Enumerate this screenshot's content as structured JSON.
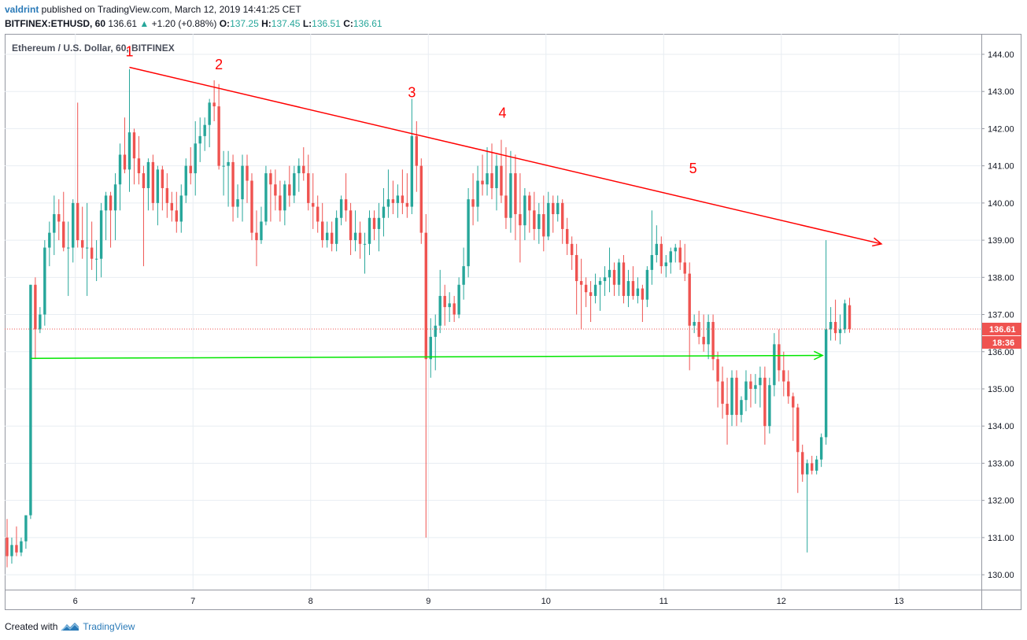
{
  "header": {
    "user": "valdrint",
    "published_text": " published on TradingView.com, March 12, 2019 14:41:25 CET"
  },
  "symbol_line": {
    "symbol": "BITFINEX:ETHUSD, 60",
    "last": "136.61",
    "change_arrow": "▲",
    "change": "+1.20 (+0.88%)",
    "o_label": "O:",
    "o": "137.25",
    "h_label": "H:",
    "h": "137.45",
    "l_label": "L:",
    "l": "136.51",
    "c_label": "C:",
    "c": "136.61"
  },
  "footer": {
    "created_with": "Created with",
    "brand": "TradingView"
  },
  "colors": {
    "up": "#26a69a",
    "down": "#ef5350",
    "trendline": "#ff0000",
    "support": "#00e600",
    "grid": "#e8edf2",
    "price_tag": "#ef5350"
  },
  "chart_data": {
    "type": "candlestick",
    "title": "Ethereum / U.S. Dollar, 60, BITFINEX",
    "x_ticks": [
      "6",
      "7",
      "8",
      "9",
      "10",
      "11",
      "12",
      "13"
    ],
    "y_ticks": [
      "130.00",
      "131.00",
      "132.00",
      "133.00",
      "134.00",
      "135.00",
      "136.00",
      "137.00",
      "138.00",
      "139.00",
      "140.00",
      "141.00",
      "142.00",
      "143.00",
      "144.00"
    ],
    "ylim": [
      129.6,
      144.55
    ],
    "xlim": [
      5.4,
      13.7
    ],
    "last_price": {
      "label": "136.61",
      "value": 136.61,
      "countdown": "18:36"
    },
    "wave_labels": [
      {
        "text": "1",
        "x": 6.46,
        "y": 143.95
      },
      {
        "text": "2",
        "x": 7.22,
        "y": 143.6
      },
      {
        "text": "3",
        "x": 8.86,
        "y": 142.85
      },
      {
        "text": "4",
        "x": 9.63,
        "y": 142.3
      },
      {
        "text": "5",
        "x": 11.25,
        "y": 140.8
      }
    ],
    "trendline": {
      "x1": 6.46,
      "y1": 143.65,
      "x2": 12.85,
      "y2": 138.9
    },
    "support_line": {
      "x1": 5.62,
      "y1": 135.82,
      "x2": 12.35,
      "y2": 135.9
    },
    "candles": [
      [
        5.42,
        131.0,
        131.5,
        130.2,
        130.5
      ],
      [
        5.46,
        130.5,
        131.0,
        130.3,
        130.8
      ],
      [
        5.5,
        130.8,
        131.3,
        130.5,
        130.6
      ],
      [
        5.54,
        130.6,
        131.0,
        130.5,
        130.9
      ],
      [
        5.58,
        130.9,
        131.6,
        130.7,
        131.6
      ],
      [
        5.62,
        131.6,
        137.8,
        131.5,
        137.8
      ],
      [
        5.66,
        137.8,
        138.0,
        135.8,
        136.6
      ],
      [
        5.7,
        136.6,
        137.2,
        136.5,
        137.0
      ],
      [
        5.74,
        137.0,
        139.0,
        136.7,
        138.8
      ],
      [
        5.78,
        138.8,
        139.5,
        138.3,
        139.2
      ],
      [
        5.82,
        139.2,
        140.2,
        138.6,
        139.7
      ],
      [
        5.86,
        139.7,
        140.1,
        139.0,
        139.5
      ],
      [
        5.9,
        139.5,
        140.3,
        138.7,
        138.8
      ],
      [
        5.94,
        138.8,
        139.5,
        137.5,
        138.8
      ],
      [
        5.98,
        138.8,
        140.1,
        138.4,
        140.0
      ],
      [
        6.02,
        140.0,
        142.7,
        138.8,
        139.0
      ],
      [
        6.06,
        139.0,
        139.9,
        138.5,
        138.8
      ],
      [
        6.1,
        138.8,
        140.0,
        137.5,
        138.8
      ],
      [
        6.14,
        138.8,
        139.5,
        138.2,
        138.5
      ],
      [
        6.18,
        138.5,
        139.0,
        137.9,
        138.5
      ],
      [
        6.22,
        138.5,
        140.0,
        138.0,
        139.8
      ],
      [
        6.26,
        139.8,
        140.3,
        139.0,
        140.2
      ],
      [
        6.3,
        140.2,
        140.3,
        138.8,
        139.8
      ],
      [
        6.34,
        139.8,
        140.8,
        139.0,
        140.5
      ],
      [
        6.38,
        140.5,
        141.6,
        139.8,
        141.3
      ],
      [
        6.42,
        141.3,
        142.3,
        140.8,
        140.9
      ],
      [
        6.46,
        140.9,
        143.6,
        140.3,
        141.9
      ],
      [
        6.5,
        141.9,
        142.0,
        140.5,
        141.2
      ],
      [
        6.54,
        141.2,
        141.8,
        140.5,
        140.8
      ],
      [
        6.58,
        140.8,
        141.0,
        138.3,
        140.4
      ],
      [
        6.62,
        140.4,
        141.2,
        139.8,
        141.1
      ],
      [
        6.66,
        141.1,
        141.3,
        139.8,
        140.0
      ],
      [
        6.7,
        140.0,
        141.0,
        139.4,
        140.9
      ],
      [
        6.74,
        140.9,
        141.0,
        139.8,
        140.4
      ],
      [
        6.78,
        140.4,
        140.8,
        139.6,
        140.0
      ],
      [
        6.82,
        140.0,
        140.3,
        139.5,
        139.8
      ],
      [
        6.86,
        139.8,
        140.3,
        139.2,
        139.5
      ],
      [
        6.9,
        139.5,
        140.5,
        139.2,
        140.2
      ],
      [
        6.94,
        140.2,
        141.2,
        140.0,
        141.0
      ],
      [
        6.98,
        141.0,
        141.5,
        140.5,
        140.8
      ],
      [
        7.02,
        140.8,
        142.2,
        140.2,
        141.6
      ],
      [
        7.06,
        141.6,
        142.3,
        141.1,
        141.8
      ],
      [
        7.1,
        141.8,
        142.3,
        141.4,
        142.1
      ],
      [
        7.14,
        142.1,
        142.8,
        141.5,
        142.7
      ],
      [
        7.18,
        142.7,
        143.3,
        142.2,
        142.6
      ],
      [
        7.22,
        142.6,
        143.2,
        140.9,
        141.0
      ],
      [
        7.26,
        141.0,
        141.4,
        140.2,
        141.0
      ],
      [
        7.3,
        141.0,
        141.4,
        139.9,
        141.1
      ],
      [
        7.34,
        141.1,
        141.3,
        139.5,
        139.9
      ],
      [
        7.38,
        139.9,
        140.5,
        139.6,
        140.1
      ],
      [
        7.42,
        140.1,
        141.3,
        139.5,
        141.0
      ],
      [
        7.46,
        141.0,
        141.3,
        140.0,
        140.6
      ],
      [
        7.5,
        140.6,
        140.8,
        139.0,
        139.2
      ],
      [
        7.54,
        139.2,
        139.8,
        138.3,
        139.0
      ],
      [
        7.58,
        139.0,
        139.9,
        138.9,
        139.5
      ],
      [
        7.62,
        139.5,
        141.0,
        139.4,
        140.8
      ],
      [
        7.66,
        140.8,
        140.9,
        139.5,
        140.5
      ],
      [
        7.7,
        140.5,
        140.9,
        139.8,
        140.2
      ],
      [
        7.74,
        140.2,
        140.6,
        139.5,
        139.8
      ],
      [
        7.78,
        139.8,
        140.6,
        139.4,
        140.5
      ],
      [
        7.82,
        140.5,
        141.0,
        139.9,
        140.2
      ],
      [
        7.86,
        140.2,
        141.0,
        140.0,
        140.8
      ],
      [
        7.9,
        140.8,
        141.2,
        140.3,
        141.0
      ],
      [
        7.94,
        141.0,
        141.5,
        140.6,
        140.8
      ],
      [
        7.98,
        140.8,
        141.3,
        139.8,
        140.0
      ],
      [
        8.02,
        140.0,
        140.8,
        139.3,
        139.9
      ],
      [
        8.06,
        139.9,
        140.2,
        139.2,
        139.5
      ],
      [
        8.1,
        139.5,
        140.0,
        138.8,
        139.0
      ],
      [
        8.14,
        139.0,
        139.5,
        138.8,
        139.2
      ],
      [
        8.18,
        139.2,
        139.5,
        138.7,
        138.9
      ],
      [
        8.22,
        138.9,
        139.8,
        138.7,
        139.6
      ],
      [
        8.26,
        139.6,
        140.2,
        139.4,
        140.1
      ],
      [
        8.3,
        140.1,
        140.8,
        139.5,
        139.8
      ],
      [
        8.34,
        139.8,
        140.0,
        138.6,
        139.0
      ],
      [
        8.38,
        139.0,
        139.8,
        138.7,
        139.2
      ],
      [
        8.42,
        139.2,
        139.5,
        138.5,
        138.9
      ],
      [
        8.46,
        138.9,
        139.2,
        138.1,
        138.9
      ],
      [
        8.5,
        138.9,
        139.8,
        138.6,
        139.6
      ],
      [
        8.54,
        139.6,
        139.8,
        139.0,
        139.3
      ],
      [
        8.58,
        139.3,
        140.0,
        138.7,
        139.6
      ],
      [
        8.62,
        139.6,
        140.4,
        139.1,
        139.9
      ],
      [
        8.66,
        139.9,
        140.9,
        139.6,
        140.1
      ],
      [
        8.7,
        140.1,
        140.6,
        139.7,
        140.0
      ],
      [
        8.74,
        140.0,
        140.5,
        139.6,
        140.2
      ],
      [
        8.78,
        140.2,
        140.9,
        139.7,
        140.0
      ],
      [
        8.82,
        140.0,
        140.8,
        139.6,
        139.9
      ],
      [
        8.86,
        139.9,
        142.8,
        139.7,
        141.8
      ],
      [
        8.9,
        141.8,
        142.2,
        140.3,
        141.0
      ],
      [
        8.94,
        141.0,
        141.2,
        138.9,
        139.2
      ],
      [
        8.98,
        139.2,
        139.7,
        131.0,
        135.8
      ],
      [
        9.02,
        135.8,
        136.9,
        135.3,
        136.4
      ],
      [
        9.06,
        136.4,
        137.0,
        135.5,
        136.7
      ],
      [
        9.1,
        136.7,
        138.2,
        136.5,
        137.5
      ],
      [
        9.14,
        137.5,
        137.8,
        136.7,
        137.2
      ],
      [
        9.18,
        137.2,
        137.6,
        136.8,
        137.3
      ],
      [
        9.22,
        137.3,
        137.5,
        136.8,
        137.0
      ],
      [
        9.26,
        137.0,
        138.0,
        136.9,
        137.8
      ],
      [
        9.3,
        137.8,
        138.8,
        137.4,
        138.3
      ],
      [
        9.34,
        138.3,
        140.4,
        138.0,
        140.1
      ],
      [
        9.38,
        140.1,
        140.8,
        139.4,
        139.9
      ],
      [
        9.42,
        139.9,
        141.0,
        139.5,
        140.6
      ],
      [
        9.46,
        140.6,
        141.3,
        140.2,
        140.5
      ],
      [
        9.5,
        140.5,
        141.5,
        140.2,
        140.8
      ],
      [
        9.54,
        140.8,
        141.6,
        140.1,
        140.4
      ],
      [
        9.58,
        140.4,
        141.3,
        139.8,
        141.0
      ],
      [
        9.62,
        141.0,
        141.7,
        140.0,
        140.2
      ],
      [
        9.66,
        140.2,
        141.5,
        139.3,
        139.6
      ],
      [
        9.7,
        139.6,
        141.4,
        139.2,
        140.8
      ],
      [
        9.74,
        140.8,
        141.3,
        139.0,
        139.7
      ],
      [
        9.78,
        139.7,
        140.8,
        138.4,
        139.4
      ],
      [
        9.82,
        139.4,
        140.4,
        139.0,
        140.2
      ],
      [
        9.86,
        140.2,
        140.3,
        139.2,
        139.8
      ],
      [
        9.9,
        139.8,
        140.3,
        139.0,
        139.3
      ],
      [
        9.94,
        139.3,
        140.0,
        138.9,
        139.7
      ],
      [
        9.98,
        139.7,
        140.2,
        138.7,
        139.1
      ],
      [
        10.02,
        139.1,
        140.3,
        139.0,
        140.0
      ],
      [
        10.06,
        140.0,
        140.2,
        139.2,
        139.7
      ],
      [
        10.1,
        139.7,
        140.2,
        139.5,
        140.0
      ],
      [
        10.14,
        140.0,
        140.1,
        138.9,
        139.3
      ],
      [
        10.18,
        139.3,
        139.6,
        138.6,
        138.9
      ],
      [
        10.22,
        138.9,
        139.1,
        138.2,
        138.6
      ],
      [
        10.26,
        138.6,
        138.9,
        137.0,
        137.9
      ],
      [
        10.3,
        137.9,
        138.5,
        136.6,
        137.8
      ],
      [
        10.34,
        137.8,
        138.0,
        137.2,
        137.6
      ],
      [
        10.38,
        137.6,
        137.9,
        136.8,
        137.5
      ],
      [
        10.42,
        137.5,
        138.1,
        137.3,
        137.8
      ],
      [
        10.46,
        137.8,
        138.0,
        137.1,
        137.9
      ],
      [
        10.5,
        137.9,
        138.3,
        137.5,
        138.0
      ],
      [
        10.54,
        138.0,
        138.8,
        137.6,
        138.2
      ],
      [
        10.58,
        138.2,
        138.4,
        137.5,
        137.8
      ],
      [
        10.62,
        137.8,
        138.5,
        137.5,
        138.4
      ],
      [
        10.66,
        138.4,
        138.6,
        137.3,
        137.5
      ],
      [
        10.7,
        137.5,
        138.2,
        137.2,
        137.9
      ],
      [
        10.74,
        137.9,
        138.3,
        137.4,
        137.5
      ],
      [
        10.78,
        137.5,
        138.0,
        137.3,
        137.7
      ],
      [
        10.82,
        137.7,
        137.8,
        136.8,
        137.4
      ],
      [
        10.86,
        137.4,
        138.3,
        137.2,
        138.2
      ],
      [
        10.9,
        138.2,
        139.8,
        137.8,
        138.6
      ],
      [
        10.94,
        138.6,
        139.4,
        138.4,
        138.9
      ],
      [
        10.98,
        138.9,
        139.1,
        138.1,
        138.3
      ],
      [
        11.02,
        138.3,
        138.6,
        138.0,
        138.4
      ],
      [
        11.06,
        138.4,
        138.8,
        138.1,
        138.7
      ],
      [
        11.1,
        138.7,
        138.9,
        138.4,
        138.8
      ],
      [
        11.14,
        138.8,
        139.0,
        138.2,
        138.4
      ],
      [
        11.18,
        138.4,
        138.9,
        137.9,
        138.1
      ],
      [
        11.22,
        138.1,
        138.4,
        135.5,
        136.7
      ],
      [
        11.26,
        136.7,
        137.0,
        136.5,
        136.8
      ],
      [
        11.3,
        136.8,
        137.1,
        136.2,
        136.4
      ],
      [
        11.34,
        136.4,
        137.0,
        136.0,
        136.2
      ],
      [
        11.38,
        136.2,
        137.0,
        135.8,
        136.8
      ],
      [
        11.42,
        136.8,
        137.0,
        135.5,
        135.8
      ],
      [
        11.46,
        135.8,
        136.0,
        134.5,
        135.2
      ],
      [
        11.5,
        135.2,
        135.6,
        134.2,
        134.6
      ],
      [
        11.54,
        134.6,
        135.3,
        133.5,
        134.3
      ],
      [
        11.58,
        134.3,
        135.5,
        134.0,
        135.3
      ],
      [
        11.62,
        135.3,
        135.5,
        134.0,
        134.3
      ],
      [
        11.66,
        134.3,
        134.8,
        134.1,
        134.7
      ],
      [
        11.7,
        134.7,
        135.5,
        134.4,
        135.2
      ],
      [
        11.74,
        135.2,
        135.4,
        134.5,
        135.0
      ],
      [
        11.78,
        135.0,
        135.4,
        134.6,
        135.1
      ],
      [
        11.82,
        135.1,
        135.6,
        134.5,
        135.3
      ],
      [
        11.86,
        135.3,
        135.6,
        133.5,
        134.0
      ],
      [
        11.9,
        134.0,
        135.3,
        133.8,
        135.1
      ],
      [
        11.94,
        135.1,
        136.5,
        134.8,
        136.2
      ],
      [
        11.98,
        136.2,
        136.6,
        135.2,
        135.5
      ],
      [
        12.02,
        135.5,
        136.0,
        134.8,
        135.2
      ],
      [
        12.06,
        135.2,
        135.5,
        134.6,
        134.8
      ],
      [
        12.1,
        134.8,
        134.9,
        133.6,
        134.5
      ],
      [
        12.14,
        134.5,
        134.6,
        132.2,
        133.3
      ],
      [
        12.18,
        133.3,
        133.5,
        132.5,
        132.7
      ],
      [
        12.22,
        132.7,
        133.1,
        130.6,
        133.0
      ],
      [
        12.26,
        133.0,
        133.2,
        132.7,
        132.8
      ],
      [
        12.3,
        132.8,
        133.2,
        132.7,
        133.1
      ],
      [
        12.34,
        133.1,
        133.8,
        132.9,
        133.7
      ],
      [
        12.38,
        133.7,
        139.0,
        133.5,
        136.6
      ],
      [
        12.42,
        136.6,
        137.2,
        136.3,
        136.8
      ],
      [
        12.46,
        136.8,
        137.4,
        136.3,
        136.5
      ],
      [
        12.5,
        136.5,
        137.0,
        136.2,
        136.6
      ],
      [
        12.54,
        136.6,
        137.4,
        136.5,
        137.3
      ],
      [
        12.58,
        137.25,
        137.45,
        136.51,
        136.61
      ]
    ]
  }
}
